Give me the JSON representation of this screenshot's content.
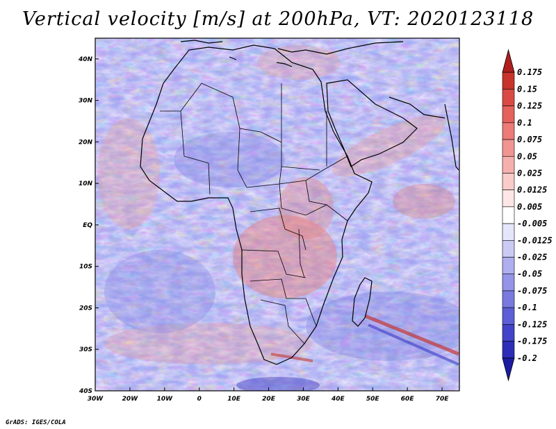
{
  "title": "Vertical velocity [m/s] at 200hPa, VT: 2020123118",
  "footer": "GrADS: IGES/COLA",
  "map": {
    "variable": "Vertical velocity",
    "units": "m/s",
    "level": "200hPa",
    "valid_time": "2020123118",
    "lon_range": [
      -30,
      75
    ],
    "lat_range": [
      -40,
      45
    ],
    "x_tick_labels": [
      "30W",
      "20W",
      "10W",
      "0",
      "10E",
      "20E",
      "30E",
      "40E",
      "50E",
      "60E",
      "70E"
    ],
    "y_tick_labels": [
      "40N",
      "30N",
      "20N",
      "10N",
      "EQ",
      "10S",
      "20S",
      "30S",
      "40S"
    ]
  },
  "colorbar": {
    "labels": [
      "0.175",
      "0.15",
      "0.125",
      "0.1",
      "0.075",
      "0.05",
      "0.025",
      "0.0125",
      "0.005",
      "-0.005",
      "-0.0125",
      "-0.025",
      "-0.05",
      "-0.075",
      "-0.1",
      "-0.125",
      "-0.175",
      "-0.2"
    ],
    "colors": [
      "#b01e1e",
      "#c8332c",
      "#d94a44",
      "#e4615c",
      "#ec7a76",
      "#f19592",
      "#f5b0ad",
      "#f9cbc9",
      "#fde6e5",
      "#ffffff",
      "#e5e5fb",
      "#cacaf5",
      "#afafef",
      "#9494e8",
      "#7979e0",
      "#5e5ed6",
      "#4343c9",
      "#2d2db8",
      "#1c1ca3"
    ]
  }
}
